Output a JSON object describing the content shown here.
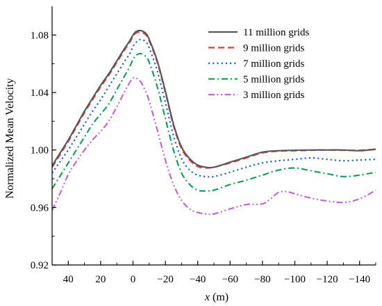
{
  "chart_data": {
    "type": "line",
    "title": "",
    "xlabel_var": "x",
    "xlabel_unit": " (m)",
    "ylabel": "Normalized Mean Velocity",
    "xlim": [
      50,
      -150
    ],
    "ylim": [
      0.92,
      1.1
    ],
    "x_ticks": [
      40,
      20,
      0,
      -20,
      -40,
      -60,
      -80,
      -100,
      -120,
      -140
    ],
    "x_tick_labels": [
      "40",
      "20",
      "0",
      "−20",
      "−40",
      "−60",
      "−80",
      "−100",
      "−120",
      "−140"
    ],
    "y_ticks": [
      0.92,
      0.96,
      1.0,
      1.04,
      1.08
    ],
    "y_tick_labels": [
      "0.92",
      "0.96",
      "1.00",
      "1.04",
      "1.08"
    ],
    "grid": false,
    "legend_position": "top-right",
    "series": [
      {
        "name": "11 million grids",
        "color": "#595959",
        "dash": "solid",
        "x": [
          50,
          45,
          40,
          35,
          30,
          25,
          20,
          15,
          10,
          5,
          2,
          0,
          -2,
          -5,
          -8,
          -10,
          -15,
          -20,
          -25,
          -30,
          -35,
          -40,
          -45,
          -50,
          -60,
          -70,
          -80,
          -90,
          -100,
          -110,
          -120,
          -130,
          -140,
          -150
        ],
        "y": [
          0.989,
          0.998,
          1.007,
          1.017,
          1.027,
          1.036,
          1.045,
          1.053,
          1.062,
          1.071,
          1.076,
          1.08,
          1.0825,
          1.083,
          1.081,
          1.077,
          1.062,
          1.041,
          1.018,
          1.002,
          0.994,
          0.9895,
          0.988,
          0.988,
          0.9915,
          0.995,
          0.9985,
          0.9995,
          0.9998,
          1.0,
          1.0,
          1.0,
          0.9995,
          1.0005
        ]
      },
      {
        "name": "9 million grids",
        "color": "#e8343a",
        "dash": "dashed",
        "x": [
          50,
          45,
          40,
          35,
          30,
          25,
          20,
          15,
          10,
          5,
          2,
          0,
          -2,
          -5,
          -8,
          -10,
          -15,
          -20,
          -25,
          -30,
          -35,
          -40,
          -45,
          -50,
          -60,
          -70,
          -80,
          -90,
          -100,
          -110,
          -120,
          -130,
          -140,
          -150
        ],
        "y": [
          0.988,
          0.997,
          1.006,
          1.016,
          1.026,
          1.035,
          1.044,
          1.052,
          1.061,
          1.07,
          1.075,
          1.079,
          1.0815,
          1.082,
          1.08,
          1.076,
          1.061,
          1.04,
          1.017,
          1.001,
          0.993,
          0.9885,
          0.9875,
          0.988,
          0.991,
          0.9945,
          0.998,
          0.9992,
          0.9995,
          0.9998,
          1.0,
          0.9998,
          0.9998,
          1.0005
        ]
      },
      {
        "name": "7 million grids",
        "color": "#2060e0",
        "dash": "dotted",
        "x": [
          50,
          45,
          40,
          35,
          30,
          25,
          20,
          15,
          10,
          5,
          2,
          0,
          -2,
          -5,
          -8,
          -10,
          -15,
          -20,
          -25,
          -30,
          -35,
          -40,
          -45,
          -50,
          -60,
          -70,
          -80,
          -90,
          -100,
          -110,
          -120,
          -130,
          -140,
          -150
        ],
        "y": [
          0.984,
          0.992,
          1.0,
          1.009,
          1.018,
          1.027,
          1.035,
          1.044,
          1.053,
          1.062,
          1.067,
          1.072,
          1.075,
          1.077,
          1.075,
          1.071,
          1.055,
          1.033,
          1.01,
          0.994,
          0.986,
          0.9825,
          0.9815,
          0.9815,
          0.9845,
          0.988,
          0.991,
          0.9925,
          0.9935,
          0.9945,
          0.9935,
          0.9925,
          0.993,
          0.9935
        ]
      },
      {
        "name": "5 million grids",
        "color": "#1a9e5c",
        "dash": "dashdot",
        "x": [
          50,
          45,
          40,
          35,
          30,
          25,
          20,
          15,
          10,
          5,
          2,
          0,
          -2,
          -5,
          -8,
          -10,
          -15,
          -20,
          -25,
          -30,
          -35,
          -40,
          -45,
          -50,
          -60,
          -70,
          -80,
          -90,
          -100,
          -110,
          -120,
          -130,
          -140,
          -150
        ],
        "y": [
          0.973,
          0.982,
          0.991,
          1.0,
          1.009,
          1.018,
          1.025,
          1.032,
          1.042,
          1.052,
          1.058,
          1.063,
          1.066,
          1.067,
          1.065,
          1.061,
          1.044,
          1.022,
          1.0,
          0.984,
          0.976,
          0.972,
          0.9715,
          0.972,
          0.976,
          0.979,
          0.9825,
          0.986,
          0.9875,
          0.9855,
          0.9835,
          0.9815,
          0.9825,
          0.9845
        ]
      },
      {
        "name": "3 million grids",
        "color": "#c266e0",
        "dash": "dashdotdot",
        "x": [
          50,
          45,
          40,
          35,
          30,
          25,
          20,
          15,
          10,
          5,
          2,
          0,
          -2,
          -5,
          -8,
          -10,
          -15,
          -20,
          -25,
          -30,
          -35,
          -40,
          -45,
          -50,
          -60,
          -70,
          -80,
          -85,
          -90,
          -95,
          -100,
          -110,
          -120,
          -130,
          -140,
          -150
        ],
        "y": [
          0.958,
          0.97,
          0.983,
          0.992,
          1.0,
          1.007,
          1.013,
          1.02,
          1.03,
          1.041,
          1.047,
          1.05,
          1.05,
          1.047,
          1.04,
          1.034,
          1.014,
          0.993,
          0.976,
          0.965,
          0.959,
          0.9565,
          0.9555,
          0.9555,
          0.959,
          0.962,
          0.9625,
          0.966,
          0.9705,
          0.971,
          0.9695,
          0.9665,
          0.9645,
          0.9635,
          0.966,
          0.972
        ]
      }
    ]
  }
}
